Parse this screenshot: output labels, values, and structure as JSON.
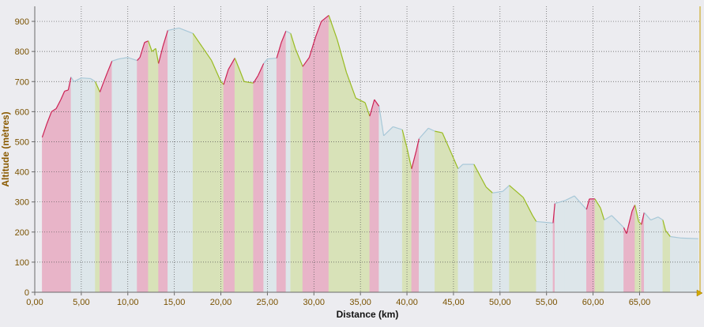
{
  "chart_data": {
    "type": "area",
    "title": "",
    "xlabel": "Distance (km)",
    "ylabel": "Altitude (mètres)",
    "xlim": [
      0,
      71.5
    ],
    "ylim": [
      0,
      950
    ],
    "x_ticks": [
      "0,00",
      "5,00",
      "10,00",
      "15,00",
      "20,00",
      "25,00",
      "30,00",
      "35,00",
      "40,00",
      "45,00",
      "50,00",
      "55,00",
      "60,00",
      "65,00"
    ],
    "x_tick_values": [
      0,
      5,
      10,
      15,
      20,
      25,
      30,
      35,
      40,
      45,
      50,
      55,
      60,
      65
    ],
    "y_ticks": [
      "0",
      "100",
      "200",
      "300",
      "400",
      "500",
      "600",
      "700",
      "800",
      "900"
    ],
    "y_tick_values": [
      0,
      100,
      200,
      300,
      400,
      500,
      600,
      700,
      800,
      900
    ],
    "grid": true,
    "colors": {
      "climb": "#cc2255",
      "climb_fill": "#e8b4c8",
      "flat": "#a8c8d8",
      "flat_fill": "#dde6ea",
      "descent": "#99bb22",
      "descent_fill": "#d8e2b8",
      "axis_label": "#8a5a00",
      "tick_label": "#7a5200",
      "grid": "#555555",
      "plot_bg": "#ececf0"
    },
    "series": [
      {
        "values": [
          {
            "x": 0.8,
            "y": 515,
            "s": "climb"
          },
          {
            "x": 1.3,
            "y": 560,
            "s": "climb"
          },
          {
            "x": 1.8,
            "y": 600,
            "s": "climb"
          },
          {
            "x": 2.3,
            "y": 610,
            "s": "climb"
          },
          {
            "x": 2.8,
            "y": 640,
            "s": "climb"
          },
          {
            "x": 3.2,
            "y": 668,
            "s": "climb"
          },
          {
            "x": 3.6,
            "y": 672,
            "s": "climb"
          },
          {
            "x": 3.9,
            "y": 715,
            "s": "climb"
          },
          {
            "x": 4.2,
            "y": 700,
            "s": "flat"
          },
          {
            "x": 5.0,
            "y": 712,
            "s": "flat"
          },
          {
            "x": 6.0,
            "y": 710,
            "s": "flat"
          },
          {
            "x": 6.5,
            "y": 700,
            "s": "flat"
          },
          {
            "x": 7.0,
            "y": 665,
            "s": "descent"
          },
          {
            "x": 7.3,
            "y": 690,
            "s": "climb"
          },
          {
            "x": 7.8,
            "y": 730,
            "s": "climb"
          },
          {
            "x": 8.3,
            "y": 768,
            "s": "climb"
          },
          {
            "x": 9.0,
            "y": 775,
            "s": "flat"
          },
          {
            "x": 10.0,
            "y": 780,
            "s": "flat"
          },
          {
            "x": 11.0,
            "y": 770,
            "s": "flat"
          },
          {
            "x": 11.3,
            "y": 780,
            "s": "climb"
          },
          {
            "x": 11.8,
            "y": 830,
            "s": "climb"
          },
          {
            "x": 12.2,
            "y": 835,
            "s": "climb"
          },
          {
            "x": 12.6,
            "y": 800,
            "s": "descent"
          },
          {
            "x": 13.0,
            "y": 810,
            "s": "descent"
          },
          {
            "x": 13.3,
            "y": 760,
            "s": "descent"
          },
          {
            "x": 13.8,
            "y": 820,
            "s": "climb"
          },
          {
            "x": 14.3,
            "y": 870,
            "s": "climb"
          },
          {
            "x": 15.5,
            "y": 878,
            "s": "flat"
          },
          {
            "x": 17.0,
            "y": 860,
            "s": "flat"
          },
          {
            "x": 18.0,
            "y": 815,
            "s": "descent"
          },
          {
            "x": 19.0,
            "y": 770,
            "s": "descent"
          },
          {
            "x": 20.0,
            "y": 700,
            "s": "descent"
          },
          {
            "x": 20.3,
            "y": 690,
            "s": "descent"
          },
          {
            "x": 20.8,
            "y": 740,
            "s": "climb"
          },
          {
            "x": 21.5,
            "y": 778,
            "s": "climb"
          },
          {
            "x": 22.0,
            "y": 740,
            "s": "descent"
          },
          {
            "x": 22.5,
            "y": 700,
            "s": "descent"
          },
          {
            "x": 23.5,
            "y": 695,
            "s": "descent"
          },
          {
            "x": 24.0,
            "y": 720,
            "s": "climb"
          },
          {
            "x": 24.6,
            "y": 760,
            "s": "climb"
          },
          {
            "x": 25.0,
            "y": 775,
            "s": "flat"
          },
          {
            "x": 26.0,
            "y": 778,
            "s": "flat"
          },
          {
            "x": 26.5,
            "y": 830,
            "s": "climb"
          },
          {
            "x": 27.0,
            "y": 868,
            "s": "climb"
          },
          {
            "x": 27.5,
            "y": 860,
            "s": "flat"
          },
          {
            "x": 28.0,
            "y": 810,
            "s": "descent"
          },
          {
            "x": 28.8,
            "y": 750,
            "s": "descent"
          },
          {
            "x": 29.5,
            "y": 780,
            "s": "climb"
          },
          {
            "x": 30.2,
            "y": 850,
            "s": "climb"
          },
          {
            "x": 30.8,
            "y": 900,
            "s": "climb"
          },
          {
            "x": 31.6,
            "y": 920,
            "s": "climb"
          },
          {
            "x": 32.5,
            "y": 840,
            "s": "descent"
          },
          {
            "x": 33.5,
            "y": 730,
            "s": "descent"
          },
          {
            "x": 34.5,
            "y": 645,
            "s": "descent"
          },
          {
            "x": 35.5,
            "y": 630,
            "s": "descent"
          },
          {
            "x": 36.0,
            "y": 585,
            "s": "descent"
          },
          {
            "x": 36.5,
            "y": 640,
            "s": "climb"
          },
          {
            "x": 37.0,
            "y": 618,
            "s": "climb"
          },
          {
            "x": 37.5,
            "y": 520,
            "s": "flat"
          },
          {
            "x": 38.5,
            "y": 550,
            "s": "flat"
          },
          {
            "x": 39.5,
            "y": 540,
            "s": "flat"
          },
          {
            "x": 40.0,
            "y": 480,
            "s": "descent"
          },
          {
            "x": 40.5,
            "y": 410,
            "s": "descent"
          },
          {
            "x": 41.0,
            "y": 470,
            "s": "climb"
          },
          {
            "x": 41.3,
            "y": 510,
            "s": "climb"
          },
          {
            "x": 42.3,
            "y": 545,
            "s": "flat"
          },
          {
            "x": 43.0,
            "y": 535,
            "s": "flat"
          },
          {
            "x": 43.8,
            "y": 530,
            "s": "descent"
          },
          {
            "x": 44.8,
            "y": 460,
            "s": "descent"
          },
          {
            "x": 45.5,
            "y": 410,
            "s": "descent"
          },
          {
            "x": 46.0,
            "y": 425,
            "s": "flat"
          },
          {
            "x": 47.2,
            "y": 425,
            "s": "flat"
          },
          {
            "x": 48.5,
            "y": 350,
            "s": "descent"
          },
          {
            "x": 49.2,
            "y": 330,
            "s": "descent"
          },
          {
            "x": 50.3,
            "y": 335,
            "s": "flat"
          },
          {
            "x": 51.0,
            "y": 355,
            "s": "flat"
          },
          {
            "x": 52.5,
            "y": 315,
            "s": "descent"
          },
          {
            "x": 53.5,
            "y": 255,
            "s": "descent"
          },
          {
            "x": 53.9,
            "y": 235,
            "s": "descent"
          },
          {
            "x": 55.0,
            "y": 232,
            "s": "flat"
          },
          {
            "x": 55.7,
            "y": 230,
            "s": "flat"
          },
          {
            "x": 55.9,
            "y": 295,
            "s": "climb"
          },
          {
            "x": 57.0,
            "y": 305,
            "s": "flat"
          },
          {
            "x": 58.0,
            "y": 320,
            "s": "flat"
          },
          {
            "x": 59.3,
            "y": 275,
            "s": "flat"
          },
          {
            "x": 59.6,
            "y": 310,
            "s": "climb"
          },
          {
            "x": 60.2,
            "y": 310,
            "s": "climb"
          },
          {
            "x": 60.8,
            "y": 280,
            "s": "descent"
          },
          {
            "x": 61.2,
            "y": 240,
            "s": "descent"
          },
          {
            "x": 62.0,
            "y": 255,
            "s": "flat"
          },
          {
            "x": 63.3,
            "y": 215,
            "s": "flat"
          },
          {
            "x": 63.6,
            "y": 195,
            "s": "climb"
          },
          {
            "x": 64.2,
            "y": 270,
            "s": "climb"
          },
          {
            "x": 64.5,
            "y": 290,
            "s": "climb"
          },
          {
            "x": 64.9,
            "y": 235,
            "s": "descent"
          },
          {
            "x": 65.2,
            "y": 225,
            "s": "descent"
          },
          {
            "x": 65.5,
            "y": 265,
            "s": "climb"
          },
          {
            "x": 66.2,
            "y": 240,
            "s": "flat"
          },
          {
            "x": 67.0,
            "y": 250,
            "s": "flat"
          },
          {
            "x": 67.5,
            "y": 240,
            "s": "flat"
          },
          {
            "x": 67.8,
            "y": 205,
            "s": "descent"
          },
          {
            "x": 68.3,
            "y": 185,
            "s": "descent"
          },
          {
            "x": 69.5,
            "y": 180,
            "s": "flat"
          },
          {
            "x": 71.3,
            "y": 178,
            "s": "flat"
          }
        ]
      }
    ]
  }
}
